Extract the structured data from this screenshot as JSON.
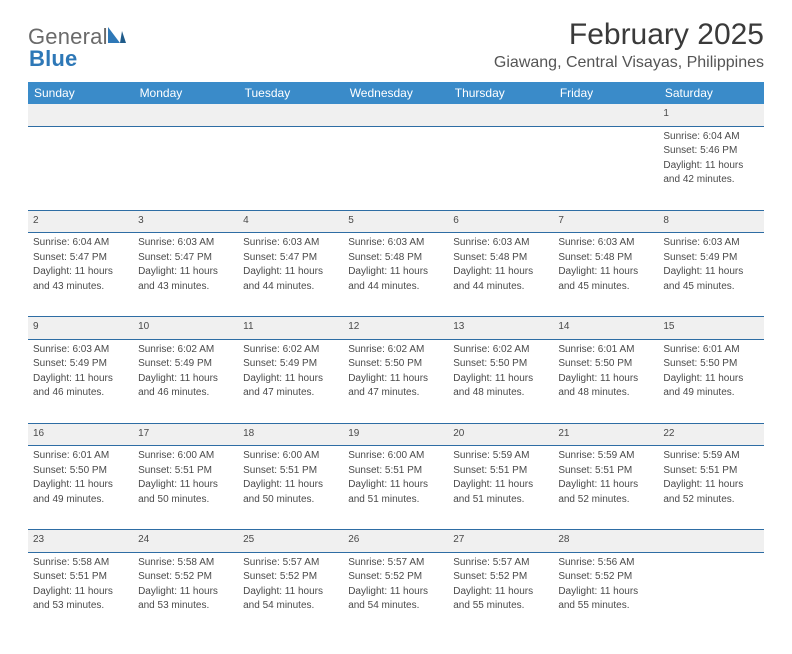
{
  "logo": {
    "text1": "General",
    "text2": "Blue"
  },
  "title": "February 2025",
  "location": "Giawang, Central Visayas, Philippines",
  "header_bg": "#3a8bc9",
  "header_fg": "#ffffff",
  "daynum_bg": "#f0f0f0",
  "rule_color": "#2e6da4",
  "day_headers": [
    "Sunday",
    "Monday",
    "Tuesday",
    "Wednesday",
    "Thursday",
    "Friday",
    "Saturday"
  ],
  "weeks": [
    [
      null,
      null,
      null,
      null,
      null,
      null,
      {
        "n": "1",
        "sr": "Sunrise: 6:04 AM",
        "ss": "Sunset: 5:46 PM",
        "dl1": "Daylight: 11 hours",
        "dl2": "and 42 minutes."
      }
    ],
    [
      {
        "n": "2",
        "sr": "Sunrise: 6:04 AM",
        "ss": "Sunset: 5:47 PM",
        "dl1": "Daylight: 11 hours",
        "dl2": "and 43 minutes."
      },
      {
        "n": "3",
        "sr": "Sunrise: 6:03 AM",
        "ss": "Sunset: 5:47 PM",
        "dl1": "Daylight: 11 hours",
        "dl2": "and 43 minutes."
      },
      {
        "n": "4",
        "sr": "Sunrise: 6:03 AM",
        "ss": "Sunset: 5:47 PM",
        "dl1": "Daylight: 11 hours",
        "dl2": "and 44 minutes."
      },
      {
        "n": "5",
        "sr": "Sunrise: 6:03 AM",
        "ss": "Sunset: 5:48 PM",
        "dl1": "Daylight: 11 hours",
        "dl2": "and 44 minutes."
      },
      {
        "n": "6",
        "sr": "Sunrise: 6:03 AM",
        "ss": "Sunset: 5:48 PM",
        "dl1": "Daylight: 11 hours",
        "dl2": "and 44 minutes."
      },
      {
        "n": "7",
        "sr": "Sunrise: 6:03 AM",
        "ss": "Sunset: 5:48 PM",
        "dl1": "Daylight: 11 hours",
        "dl2": "and 45 minutes."
      },
      {
        "n": "8",
        "sr": "Sunrise: 6:03 AM",
        "ss": "Sunset: 5:49 PM",
        "dl1": "Daylight: 11 hours",
        "dl2": "and 45 minutes."
      }
    ],
    [
      {
        "n": "9",
        "sr": "Sunrise: 6:03 AM",
        "ss": "Sunset: 5:49 PM",
        "dl1": "Daylight: 11 hours",
        "dl2": "and 46 minutes."
      },
      {
        "n": "10",
        "sr": "Sunrise: 6:02 AM",
        "ss": "Sunset: 5:49 PM",
        "dl1": "Daylight: 11 hours",
        "dl2": "and 46 minutes."
      },
      {
        "n": "11",
        "sr": "Sunrise: 6:02 AM",
        "ss": "Sunset: 5:49 PM",
        "dl1": "Daylight: 11 hours",
        "dl2": "and 47 minutes."
      },
      {
        "n": "12",
        "sr": "Sunrise: 6:02 AM",
        "ss": "Sunset: 5:50 PM",
        "dl1": "Daylight: 11 hours",
        "dl2": "and 47 minutes."
      },
      {
        "n": "13",
        "sr": "Sunrise: 6:02 AM",
        "ss": "Sunset: 5:50 PM",
        "dl1": "Daylight: 11 hours",
        "dl2": "and 48 minutes."
      },
      {
        "n": "14",
        "sr": "Sunrise: 6:01 AM",
        "ss": "Sunset: 5:50 PM",
        "dl1": "Daylight: 11 hours",
        "dl2": "and 48 minutes."
      },
      {
        "n": "15",
        "sr": "Sunrise: 6:01 AM",
        "ss": "Sunset: 5:50 PM",
        "dl1": "Daylight: 11 hours",
        "dl2": "and 49 minutes."
      }
    ],
    [
      {
        "n": "16",
        "sr": "Sunrise: 6:01 AM",
        "ss": "Sunset: 5:50 PM",
        "dl1": "Daylight: 11 hours",
        "dl2": "and 49 minutes."
      },
      {
        "n": "17",
        "sr": "Sunrise: 6:00 AM",
        "ss": "Sunset: 5:51 PM",
        "dl1": "Daylight: 11 hours",
        "dl2": "and 50 minutes."
      },
      {
        "n": "18",
        "sr": "Sunrise: 6:00 AM",
        "ss": "Sunset: 5:51 PM",
        "dl1": "Daylight: 11 hours",
        "dl2": "and 50 minutes."
      },
      {
        "n": "19",
        "sr": "Sunrise: 6:00 AM",
        "ss": "Sunset: 5:51 PM",
        "dl1": "Daylight: 11 hours",
        "dl2": "and 51 minutes."
      },
      {
        "n": "20",
        "sr": "Sunrise: 5:59 AM",
        "ss": "Sunset: 5:51 PM",
        "dl1": "Daylight: 11 hours",
        "dl2": "and 51 minutes."
      },
      {
        "n": "21",
        "sr": "Sunrise: 5:59 AM",
        "ss": "Sunset: 5:51 PM",
        "dl1": "Daylight: 11 hours",
        "dl2": "and 52 minutes."
      },
      {
        "n": "22",
        "sr": "Sunrise: 5:59 AM",
        "ss": "Sunset: 5:51 PM",
        "dl1": "Daylight: 11 hours",
        "dl2": "and 52 minutes."
      }
    ],
    [
      {
        "n": "23",
        "sr": "Sunrise: 5:58 AM",
        "ss": "Sunset: 5:51 PM",
        "dl1": "Daylight: 11 hours",
        "dl2": "and 53 minutes."
      },
      {
        "n": "24",
        "sr": "Sunrise: 5:58 AM",
        "ss": "Sunset: 5:52 PM",
        "dl1": "Daylight: 11 hours",
        "dl2": "and 53 minutes."
      },
      {
        "n": "25",
        "sr": "Sunrise: 5:57 AM",
        "ss": "Sunset: 5:52 PM",
        "dl1": "Daylight: 11 hours",
        "dl2": "and 54 minutes."
      },
      {
        "n": "26",
        "sr": "Sunrise: 5:57 AM",
        "ss": "Sunset: 5:52 PM",
        "dl1": "Daylight: 11 hours",
        "dl2": "and 54 minutes."
      },
      {
        "n": "27",
        "sr": "Sunrise: 5:57 AM",
        "ss": "Sunset: 5:52 PM",
        "dl1": "Daylight: 11 hours",
        "dl2": "and 55 minutes."
      },
      {
        "n": "28",
        "sr": "Sunrise: 5:56 AM",
        "ss": "Sunset: 5:52 PM",
        "dl1": "Daylight: 11 hours",
        "dl2": "and 55 minutes."
      },
      null
    ]
  ]
}
